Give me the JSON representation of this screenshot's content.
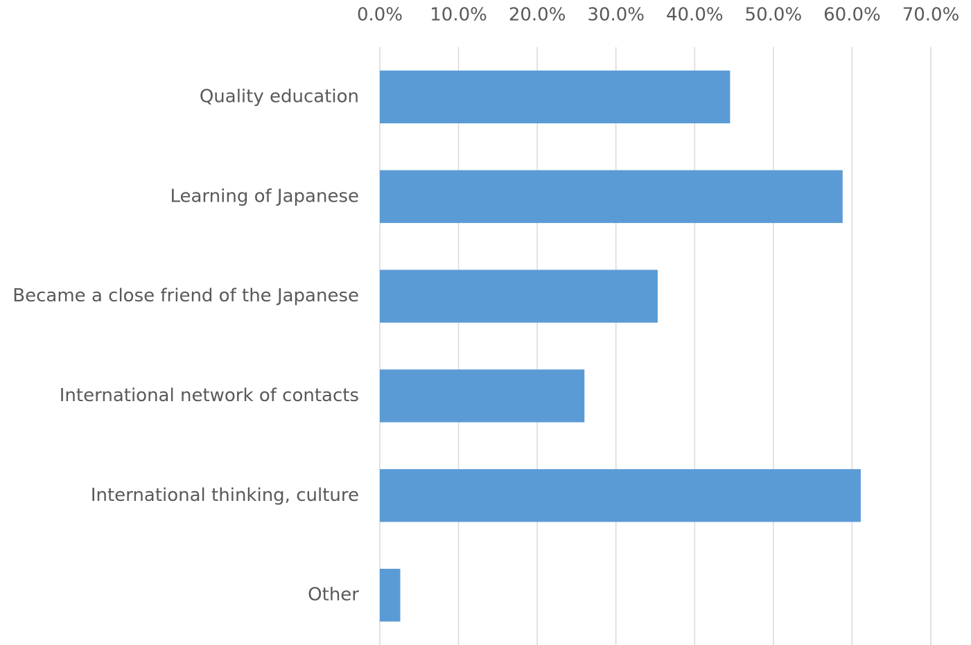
{
  "chart_data": {
    "type": "bar",
    "orientation": "horizontal",
    "categories": [
      "Quality education",
      "Learning of Japanese",
      "Became a close friend of the Japanese",
      "International network of contacts",
      "International thinking, culture",
      "Other"
    ],
    "values": [
      44.5,
      58.8,
      35.3,
      26.0,
      61.1,
      2.6
    ],
    "color": "#5b9bd5",
    "xlim": [
      0,
      70
    ],
    "xticks": [
      {
        "value": 0,
        "label": "0.0%"
      },
      {
        "value": 10,
        "label": "10.0%"
      },
      {
        "value": 20,
        "label": "20.0%"
      },
      {
        "value": 30,
        "label": "30.0%"
      },
      {
        "value": 40,
        "label": "40.0%"
      },
      {
        "value": 50,
        "label": "50.0%"
      },
      {
        "value": 60,
        "label": "60.0%"
      },
      {
        "value": 70,
        "label": "70.0%"
      }
    ],
    "grid": true
  }
}
